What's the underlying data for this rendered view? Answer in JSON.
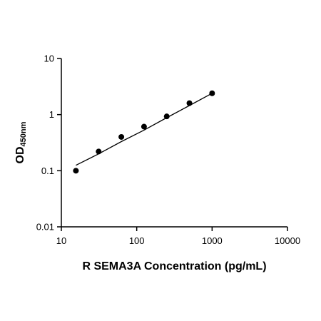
{
  "chart_data": {
    "type": "scatter",
    "title": "",
    "xlabel": "R SEMA3A Concentration (pg/mL)",
    "ylabel": "OD",
    "ylabel_subscript": "450nm",
    "xscale": "log",
    "yscale": "log",
    "xlim": [
      10,
      10000
    ],
    "ylim": [
      0.01,
      10
    ],
    "x_ticks": [
      "10",
      "100",
      "1000",
      "10000"
    ],
    "y_ticks": [
      "0.01",
      "0.1",
      "1",
      "10"
    ],
    "x_tick_values": [
      10,
      100,
      1000,
      10000
    ],
    "y_tick_values": [
      0.01,
      0.1,
      1,
      10
    ],
    "grid": false,
    "legend": "none",
    "series": [
      {
        "x": [
          15.6,
          31.25,
          62.5,
          125,
          250,
          500,
          1000
        ],
        "y": [
          0.1,
          0.22,
          0.4,
          0.61,
          0.93,
          1.6,
          2.4
        ]
      }
    ],
    "fit_line": {
      "x": [
        15.6,
        31.25,
        62.5,
        125,
        250,
        500,
        1000
      ],
      "y": [
        0.125,
        0.2,
        0.33,
        0.53,
        0.88,
        1.45,
        2.4
      ]
    },
    "colors": {
      "marker": "#000000",
      "line": "#000000",
      "axis": "#000000"
    }
  }
}
